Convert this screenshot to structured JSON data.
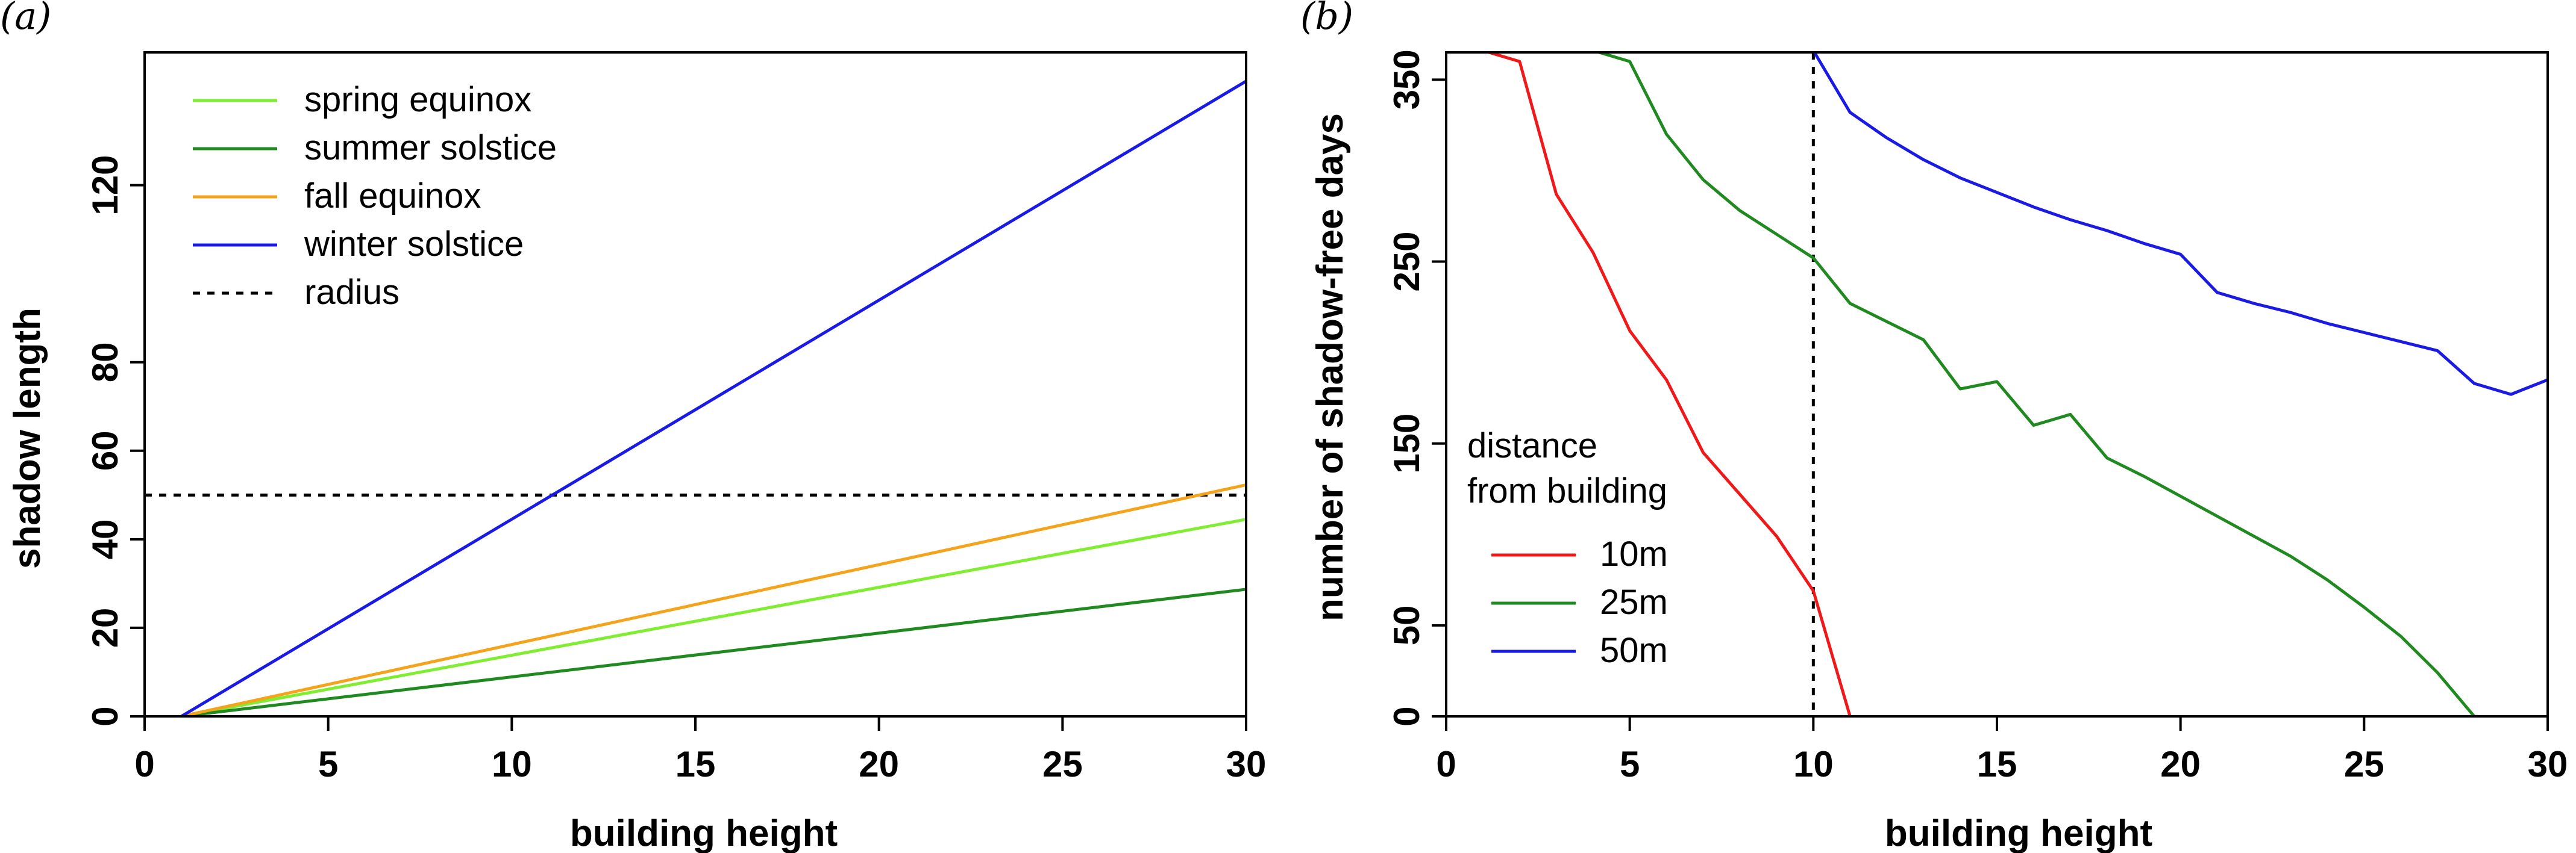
{
  "chart_data": [
    {
      "panel": "(a)",
      "type": "line",
      "xlabel": "building height",
      "ylabel": "shadow length",
      "xlim": [
        0,
        30
      ],
      "ylim": [
        0,
        150
      ],
      "xticks": [
        0,
        5,
        10,
        15,
        20,
        25,
        30
      ],
      "yticks": [
        0,
        20,
        40,
        60,
        80,
        120
      ],
      "legend_position": "top-left",
      "series": [
        {
          "name": "spring equinox",
          "color": "#80ee30",
          "x": [
            1,
            30
          ],
          "y": [
            0,
            44.5
          ]
        },
        {
          "name": "summer solstice",
          "color": "#1f8a1f",
          "x": [
            1,
            30
          ],
          "y": [
            0,
            28.7
          ]
        },
        {
          "name": "fall equinox",
          "color": "#f5a31a",
          "x": [
            1,
            30
          ],
          "y": [
            0,
            52.3
          ]
        },
        {
          "name": "winter solstice",
          "color": "#1a1ae6",
          "x": [
            1,
            30
          ],
          "y": [
            0,
            143.5
          ]
        }
      ],
      "reference_lines": [
        {
          "name": "radius",
          "orientation": "horizontal",
          "value": 50,
          "style": "dotted",
          "color": "#000000"
        }
      ]
    },
    {
      "panel": "(b)",
      "type": "line",
      "xlabel": "building height",
      "ylabel": "number of shadow-free days",
      "xlim": [
        0,
        30
      ],
      "ylim": [
        0,
        365
      ],
      "xticks": [
        0,
        5,
        10,
        15,
        20,
        25,
        30
      ],
      "yticks": [
        0,
        50,
        150,
        250,
        350
      ],
      "legend_title": "distance\nfrom building",
      "legend_position": "bottom-left",
      "series": [
        {
          "name": "10m",
          "color": "#f01818",
          "x": [
            1,
            2,
            3,
            4,
            5,
            6,
            7,
            8,
            9,
            10,
            11
          ],
          "y": [
            366,
            360,
            287,
            255,
            212,
            185,
            145,
            122,
            99,
            69,
            0
          ]
        },
        {
          "name": "25m",
          "color": "#1f8a1f",
          "x": [
            4,
            5,
            6,
            7,
            8,
            9,
            10,
            11,
            12,
            13,
            14,
            15,
            16,
            17,
            18,
            19,
            20,
            21,
            22,
            23,
            24,
            25,
            26,
            27,
            28,
            29
          ],
          "y": [
            366,
            360,
            320,
            295,
            278,
            265,
            252,
            227,
            217,
            207,
            180,
            184,
            160,
            166,
            142,
            132,
            121,
            110,
            99,
            88,
            75,
            60,
            44,
            24,
            0,
            -1
          ]
        },
        {
          "name": "50m",
          "color": "#1a1ae6",
          "x": [
            10,
            11,
            12,
            13,
            14,
            15,
            16,
            17,
            18,
            19,
            20,
            21,
            22,
            23,
            24,
            25,
            26,
            27,
            28,
            29,
            30
          ],
          "y": [
            366,
            332,
            318,
            306,
            296,
            288,
            280,
            273,
            267,
            260,
            254,
            233,
            227,
            222,
            216,
            211,
            206,
            201,
            183,
            177,
            185
          ]
        }
      ],
      "reference_lines": [
        {
          "orientation": "vertical",
          "value": 10,
          "style": "dotted",
          "color": "#000000"
        }
      ]
    }
  ]
}
